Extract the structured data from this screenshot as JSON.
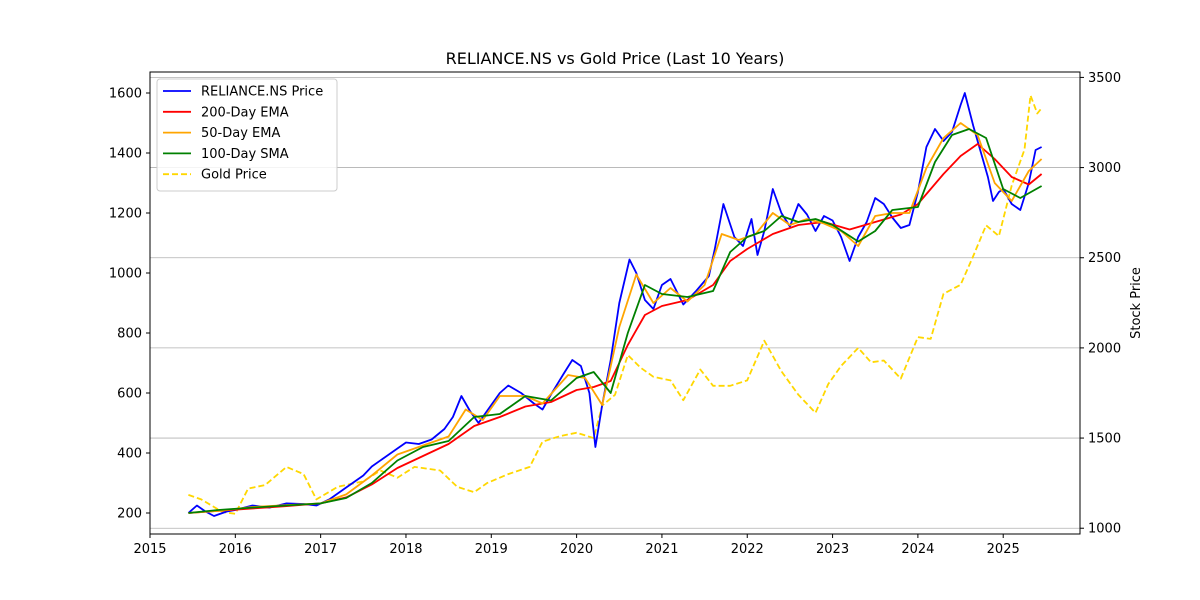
{
  "chart_data": {
    "type": "line",
    "title": "RELIANCE.NS vs Gold Price (Last 10 Years)",
    "xlabel": "",
    "ylabel_left": "",
    "ylabel_right": "Stock Price",
    "x_ticks": [
      "2015",
      "2016",
      "2017",
      "2018",
      "2019",
      "2020",
      "2021",
      "2022",
      "2023",
      "2024",
      "2025"
    ],
    "xlim": [
      2015.0,
      2025.9
    ],
    "ylim_left": [
      130,
      1670
    ],
    "ylim_right": [
      968,
      3530
    ],
    "y_ticks_left": [
      200,
      400,
      600,
      800,
      1000,
      1200,
      1400,
      1600
    ],
    "y_ticks_right": [
      1000,
      1500,
      2000,
      2500,
      3000,
      3500
    ],
    "grid": "horizontal (right axis)",
    "legend_position": "top-left",
    "series": [
      {
        "name": "RELIANCE.NS Price",
        "axis": "left",
        "color": "#0000ff",
        "style": "solid",
        "points": [
          [
            2015.45,
            200
          ],
          [
            2015.55,
            225
          ],
          [
            2015.65,
            205
          ],
          [
            2015.75,
            190
          ],
          [
            2015.9,
            205
          ],
          [
            2016.0,
            210
          ],
          [
            2016.2,
            225
          ],
          [
            2016.4,
            218
          ],
          [
            2016.6,
            232
          ],
          [
            2016.8,
            230
          ],
          [
            2016.95,
            225
          ],
          [
            2017.1,
            245
          ],
          [
            2017.3,
            285
          ],
          [
            2017.5,
            325
          ],
          [
            2017.6,
            355
          ],
          [
            2017.75,
            385
          ],
          [
            2017.9,
            415
          ],
          [
            2018.0,
            435
          ],
          [
            2018.15,
            430
          ],
          [
            2018.3,
            445
          ],
          [
            2018.45,
            480
          ],
          [
            2018.55,
            520
          ],
          [
            2018.65,
            590
          ],
          [
            2018.75,
            540
          ],
          [
            2018.85,
            500
          ],
          [
            2018.95,
            540
          ],
          [
            2019.1,
            600
          ],
          [
            2019.2,
            625
          ],
          [
            2019.35,
            600
          ],
          [
            2019.5,
            565
          ],
          [
            2019.6,
            545
          ],
          [
            2019.7,
            595
          ],
          [
            2019.85,
            665
          ],
          [
            2019.95,
            710
          ],
          [
            2020.05,
            690
          ],
          [
            2020.15,
            600
          ],
          [
            2020.22,
            420
          ],
          [
            2020.3,
            560
          ],
          [
            2020.4,
            710
          ],
          [
            2020.5,
            900
          ],
          [
            2020.62,
            1045
          ],
          [
            2020.7,
            1000
          ],
          [
            2020.8,
            910
          ],
          [
            2020.9,
            880
          ],
          [
            2021.0,
            960
          ],
          [
            2021.1,
            980
          ],
          [
            2021.25,
            895
          ],
          [
            2021.4,
            940
          ],
          [
            2021.55,
            990
          ],
          [
            2021.62,
            1080
          ],
          [
            2021.72,
            1230
          ],
          [
            2021.85,
            1120
          ],
          [
            2021.95,
            1090
          ],
          [
            2022.05,
            1180
          ],
          [
            2022.12,
            1060
          ],
          [
            2022.2,
            1140
          ],
          [
            2022.3,
            1280
          ],
          [
            2022.4,
            1200
          ],
          [
            2022.5,
            1155
          ],
          [
            2022.6,
            1230
          ],
          [
            2022.7,
            1195
          ],
          [
            2022.8,
            1140
          ],
          [
            2022.9,
            1190
          ],
          [
            2023.0,
            1175
          ],
          [
            2023.1,
            1120
          ],
          [
            2023.2,
            1040
          ],
          [
            2023.3,
            1120
          ],
          [
            2023.4,
            1170
          ],
          [
            2023.5,
            1250
          ],
          [
            2023.6,
            1230
          ],
          [
            2023.7,
            1185
          ],
          [
            2023.8,
            1150
          ],
          [
            2023.9,
            1160
          ],
          [
            2024.0,
            1270
          ],
          [
            2024.1,
            1420
          ],
          [
            2024.2,
            1480
          ],
          [
            2024.3,
            1440
          ],
          [
            2024.4,
            1470
          ],
          [
            2024.5,
            1560
          ],
          [
            2024.55,
            1600
          ],
          [
            2024.65,
            1490
          ],
          [
            2024.75,
            1390
          ],
          [
            2024.82,
            1320
          ],
          [
            2024.88,
            1240
          ],
          [
            2024.95,
            1270
          ],
          [
            2025.0,
            1280
          ],
          [
            2025.1,
            1230
          ],
          [
            2025.2,
            1210
          ],
          [
            2025.3,
            1300
          ],
          [
            2025.38,
            1410
          ],
          [
            2025.45,
            1420
          ]
        ]
      },
      {
        "name": "200-Day EMA",
        "axis": "left",
        "color": "#ff0000",
        "style": "solid",
        "points": [
          [
            2015.45,
            200
          ],
          [
            2015.8,
            207
          ],
          [
            2016.2,
            215
          ],
          [
            2016.6,
            223
          ],
          [
            2017.0,
            232
          ],
          [
            2017.3,
            252
          ],
          [
            2017.6,
            295
          ],
          [
            2017.9,
            350
          ],
          [
            2018.2,
            390
          ],
          [
            2018.5,
            430
          ],
          [
            2018.8,
            490
          ],
          [
            2019.1,
            520
          ],
          [
            2019.4,
            555
          ],
          [
            2019.7,
            570
          ],
          [
            2020.0,
            610
          ],
          [
            2020.2,
            620
          ],
          [
            2020.4,
            640
          ],
          [
            2020.6,
            760
          ],
          [
            2020.8,
            860
          ],
          [
            2021.0,
            890
          ],
          [
            2021.3,
            910
          ],
          [
            2021.6,
            960
          ],
          [
            2021.8,
            1040
          ],
          [
            2022.0,
            1080
          ],
          [
            2022.3,
            1130
          ],
          [
            2022.6,
            1160
          ],
          [
            2022.9,
            1170
          ],
          [
            2023.2,
            1145
          ],
          [
            2023.5,
            1170
          ],
          [
            2023.8,
            1195
          ],
          [
            2024.0,
            1230
          ],
          [
            2024.3,
            1330
          ],
          [
            2024.5,
            1390
          ],
          [
            2024.7,
            1430
          ],
          [
            2024.9,
            1380
          ],
          [
            2025.1,
            1320
          ],
          [
            2025.3,
            1295
          ],
          [
            2025.45,
            1330
          ]
        ]
      },
      {
        "name": "50-Day EMA",
        "axis": "left",
        "color": "#ffa500",
        "style": "solid",
        "points": [
          [
            2015.45,
            200
          ],
          [
            2015.8,
            207
          ],
          [
            2016.2,
            220
          ],
          [
            2016.6,
            226
          ],
          [
            2017.0,
            232
          ],
          [
            2017.3,
            262
          ],
          [
            2017.6,
            325
          ],
          [
            2017.9,
            395
          ],
          [
            2018.2,
            425
          ],
          [
            2018.5,
            455
          ],
          [
            2018.7,
            545
          ],
          [
            2018.9,
            510
          ],
          [
            2019.1,
            590
          ],
          [
            2019.4,
            590
          ],
          [
            2019.6,
            565
          ],
          [
            2019.9,
            660
          ],
          [
            2020.1,
            650
          ],
          [
            2020.3,
            560
          ],
          [
            2020.5,
            820
          ],
          [
            2020.7,
            995
          ],
          [
            2020.9,
            900
          ],
          [
            2021.1,
            950
          ],
          [
            2021.3,
            905
          ],
          [
            2021.5,
            960
          ],
          [
            2021.7,
            1130
          ],
          [
            2021.9,
            1110
          ],
          [
            2022.1,
            1130
          ],
          [
            2022.3,
            1200
          ],
          [
            2022.5,
            1160
          ],
          [
            2022.7,
            1180
          ],
          [
            2022.9,
            1165
          ],
          [
            2023.1,
            1140
          ],
          [
            2023.3,
            1090
          ],
          [
            2023.5,
            1190
          ],
          [
            2023.7,
            1200
          ],
          [
            2023.9,
            1200
          ],
          [
            2024.1,
            1350
          ],
          [
            2024.3,
            1450
          ],
          [
            2024.5,
            1500
          ],
          [
            2024.7,
            1460
          ],
          [
            2024.9,
            1300
          ],
          [
            2025.1,
            1240
          ],
          [
            2025.3,
            1340
          ],
          [
            2025.45,
            1380
          ]
        ]
      },
      {
        "name": "100-Day SMA",
        "axis": "left",
        "color": "#008000",
        "style": "solid",
        "points": [
          [
            2015.45,
            200
          ],
          [
            2015.8,
            210
          ],
          [
            2016.2,
            218
          ],
          [
            2016.6,
            225
          ],
          [
            2017.0,
            232
          ],
          [
            2017.3,
            250
          ],
          [
            2017.6,
            300
          ],
          [
            2017.9,
            375
          ],
          [
            2018.2,
            420
          ],
          [
            2018.5,
            440
          ],
          [
            2018.8,
            520
          ],
          [
            2019.1,
            530
          ],
          [
            2019.4,
            590
          ],
          [
            2019.7,
            575
          ],
          [
            2020.0,
            650
          ],
          [
            2020.2,
            670
          ],
          [
            2020.4,
            600
          ],
          [
            2020.6,
            800
          ],
          [
            2020.8,
            960
          ],
          [
            2021.0,
            930
          ],
          [
            2021.3,
            920
          ],
          [
            2021.6,
            940
          ],
          [
            2021.8,
            1070
          ],
          [
            2022.0,
            1120
          ],
          [
            2022.2,
            1140
          ],
          [
            2022.4,
            1190
          ],
          [
            2022.6,
            1170
          ],
          [
            2022.8,
            1180
          ],
          [
            2023.0,
            1160
          ],
          [
            2023.3,
            1105
          ],
          [
            2023.5,
            1140
          ],
          [
            2023.7,
            1210
          ],
          [
            2024.0,
            1220
          ],
          [
            2024.2,
            1370
          ],
          [
            2024.4,
            1460
          ],
          [
            2024.6,
            1480
          ],
          [
            2024.8,
            1450
          ],
          [
            2025.0,
            1280
          ],
          [
            2025.2,
            1250
          ],
          [
            2025.45,
            1290
          ]
        ]
      },
      {
        "name": "Gold Price",
        "axis": "right",
        "color": "#ffd700",
        "style": "dashed",
        "points": [
          [
            2015.45,
            1185
          ],
          [
            2015.6,
            1160
          ],
          [
            2015.85,
            1090
          ],
          [
            2016.0,
            1080
          ],
          [
            2016.15,
            1220
          ],
          [
            2016.35,
            1240
          ],
          [
            2016.6,
            1340
          ],
          [
            2016.8,
            1300
          ],
          [
            2016.95,
            1160
          ],
          [
            2017.2,
            1230
          ],
          [
            2017.5,
            1260
          ],
          [
            2017.7,
            1320
          ],
          [
            2017.9,
            1280
          ],
          [
            2018.1,
            1340
          ],
          [
            2018.4,
            1320
          ],
          [
            2018.6,
            1230
          ],
          [
            2018.8,
            1200
          ],
          [
            2018.95,
            1250
          ],
          [
            2019.2,
            1300
          ],
          [
            2019.45,
            1340
          ],
          [
            2019.6,
            1480
          ],
          [
            2019.8,
            1510
          ],
          [
            2020.0,
            1530
          ],
          [
            2020.2,
            1500
          ],
          [
            2020.3,
            1680
          ],
          [
            2020.45,
            1740
          ],
          [
            2020.6,
            1960
          ],
          [
            2020.75,
            1890
          ],
          [
            2020.9,
            1840
          ],
          [
            2021.1,
            1820
          ],
          [
            2021.25,
            1710
          ],
          [
            2021.45,
            1880
          ],
          [
            2021.6,
            1790
          ],
          [
            2021.8,
            1790
          ],
          [
            2022.0,
            1820
          ],
          [
            2022.2,
            2040
          ],
          [
            2022.4,
            1870
          ],
          [
            2022.6,
            1740
          ],
          [
            2022.8,
            1640
          ],
          [
            2022.95,
            1800
          ],
          [
            2023.1,
            1900
          ],
          [
            2023.3,
            2000
          ],
          [
            2023.45,
            1920
          ],
          [
            2023.6,
            1930
          ],
          [
            2023.8,
            1830
          ],
          [
            2024.0,
            2060
          ],
          [
            2024.15,
            2050
          ],
          [
            2024.3,
            2300
          ],
          [
            2024.5,
            2350
          ],
          [
            2024.65,
            2510
          ],
          [
            2024.8,
            2680
          ],
          [
            2024.95,
            2620
          ],
          [
            2025.1,
            2900
          ],
          [
            2025.25,
            3100
          ],
          [
            2025.32,
            3400
          ],
          [
            2025.4,
            3300
          ],
          [
            2025.45,
            3330
          ]
        ]
      }
    ]
  }
}
